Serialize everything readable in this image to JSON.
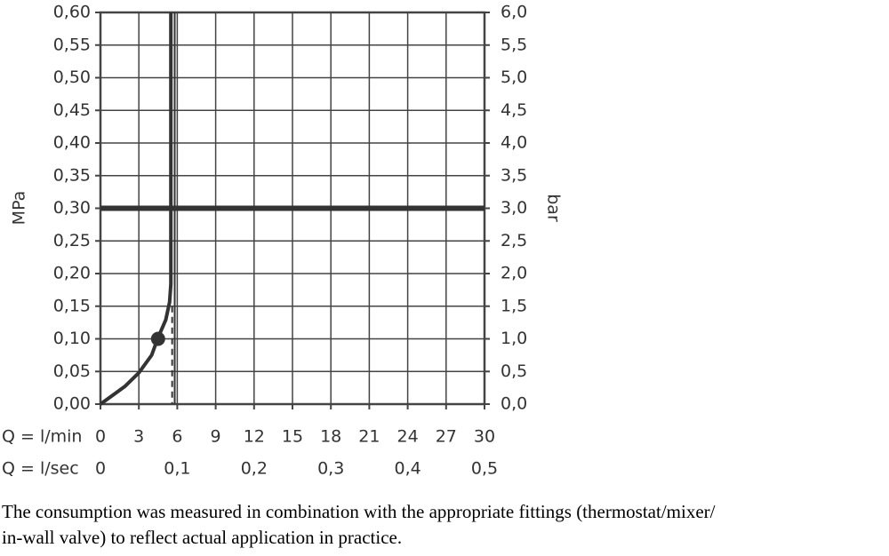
{
  "chart_data": {
    "type": "line",
    "y_label": "MPa",
    "y2_label": "bar",
    "x_label": "Q = l/min",
    "x2_label": "Q = l/sec",
    "note_lines": [
      "The consumption was measured in combination with the appropriate fittings (thermostat/mixer/",
      "in-wall valve) to reflect actual application in practice."
    ],
    "xlim": [
      0,
      30
    ],
    "xticks": [
      0,
      3,
      6,
      9,
      12,
      15,
      18,
      21,
      24,
      27,
      30
    ],
    "x2lim": [
      0,
      0.5
    ],
    "x2ticks": [
      0,
      {
        "value": 0.1,
        "label": "0,1"
      },
      {
        "value": 0.2,
        "label": "0,2"
      },
      {
        "value": 0.3,
        "label": "0,3"
      },
      {
        "value": 0.4,
        "label": "0,4"
      },
      {
        "value": 0.5,
        "label": "0,5"
      }
    ],
    "ylim": [
      0,
      0.6
    ],
    "yticks": [
      {
        "value": 0,
        "label": "0,00"
      },
      {
        "value": 0.05,
        "label": "0,05"
      },
      {
        "value": 0.1,
        "label": "0,10"
      },
      {
        "value": 0.15,
        "label": "0,15"
      },
      {
        "value": 0.2,
        "label": "0,20"
      },
      {
        "value": 0.25,
        "label": "0,25"
      },
      {
        "value": 0.3,
        "label": "0,30"
      },
      {
        "value": 0.35,
        "label": "0,35"
      },
      {
        "value": 0.4,
        "label": "0,40"
      },
      {
        "value": 0.45,
        "label": "0,45"
      },
      {
        "value": 0.5,
        "label": "0,50"
      },
      {
        "value": 0.55,
        "label": "0,55"
      },
      {
        "value": 0.6,
        "label": "0,60"
      }
    ],
    "y2lim": [
      0,
      6
    ],
    "y2ticks": [
      {
        "value": 0,
        "label": "0,0"
      },
      {
        "value": 0.5,
        "label": "0,5"
      },
      {
        "value": 1,
        "label": "1,0"
      },
      {
        "value": 1.5,
        "label": "1,5"
      },
      {
        "value": 2,
        "label": "2,0"
      },
      {
        "value": 2.5,
        "label": "2,5"
      },
      {
        "value": 3,
        "label": "3,0"
      },
      {
        "value": 3.5,
        "label": "3,5"
      },
      {
        "value": 4,
        "label": "4,0"
      },
      {
        "value": 4.5,
        "label": "4,5"
      },
      {
        "value": 5,
        "label": "5,0"
      },
      {
        "value": 5.5,
        "label": "5,5"
      },
      {
        "value": 6,
        "label": "6,0"
      }
    ],
    "grid": true,
    "color": "#333333",
    "series": [
      {
        "x": [
          0,
          1.9,
          3.0,
          4.0,
          4.5,
          5.1,
          5.4,
          5.5,
          5.5
        ],
        "values": [
          0,
          0.027,
          0.048,
          0.075,
          0.102,
          0.129,
          0.156,
          0.184,
          0.6
        ]
      }
    ],
    "marker": {
      "x": 4.5,
      "y": 0.1
    },
    "hlines": [
      {
        "y": 0.3
      }
    ],
    "vlines": [
      {
        "x": 5.8
      },
      {
        "x": 5.6,
        "ymax": 0.15,
        "dashed": true
      }
    ]
  }
}
